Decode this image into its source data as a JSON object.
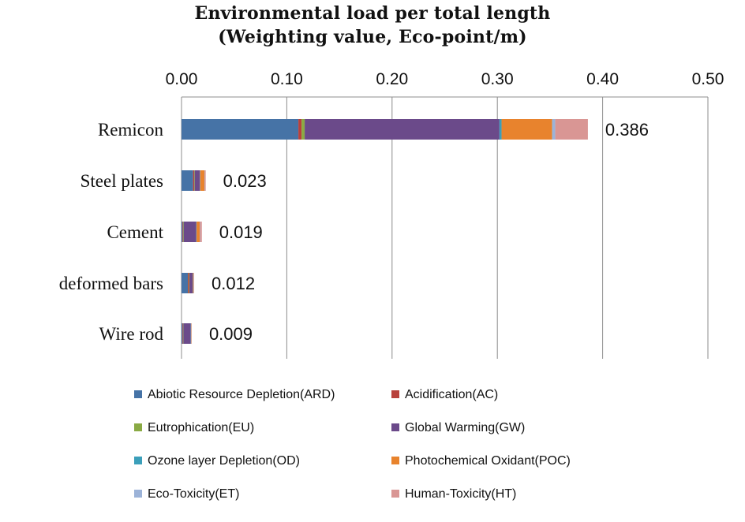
{
  "chart_data": {
    "type": "bar",
    "orientation": "horizontal",
    "stacked": true,
    "title_line1": "Environmental load per total length",
    "title_line2": "(Weighting value, Eco-point/m)",
    "xlim": [
      0,
      0.5
    ],
    "xticks": [
      "0.00",
      "0.10",
      "0.20",
      "0.30",
      "0.40",
      "0.50"
    ],
    "tick_values": [
      0,
      0.1,
      0.2,
      0.3,
      0.4,
      0.5
    ],
    "grid": true,
    "legend_position": "bottom",
    "categories": [
      "Remicon",
      "Steel plates",
      "Cement",
      "deformed bars",
      "Wire rod"
    ],
    "totals": [
      "0.386",
      "0.023",
      "0.019",
      "0.012",
      "0.009"
    ],
    "series": [
      {
        "name": "Abiotic Resource Depletion(ARD)",
        "color": "#4673a6",
        "values": [
          0.111,
          0.011,
          0.001,
          0.006,
          0.001
        ]
      },
      {
        "name": "Acidification(AC)",
        "color": "#b8413c",
        "values": [
          0.003,
          0.001,
          0.0005,
          0.001,
          0.0005
        ]
      },
      {
        "name": "Eutrophication(EU)",
        "color": "#8aaa44",
        "values": [
          0.003,
          0.0005,
          0.0005,
          0.0005,
          0.0003
        ]
      },
      {
        "name": "Global Warming(GW)",
        "color": "#6b4a8a",
        "values": [
          0.185,
          0.005,
          0.012,
          0.003,
          0.007
        ]
      },
      {
        "name": "Ozone layer Depletion(OD)",
        "color": "#3b9fba",
        "values": [
          0.002,
          0.0003,
          0.0003,
          0.0003,
          0.0002
        ]
      },
      {
        "name": "Photochemical Oxidant(POC)",
        "color": "#e8832d",
        "values": [
          0.048,
          0.004,
          0.003,
          0.0005,
          0.0003
        ]
      },
      {
        "name": "Eco-Toxicity(ET)",
        "color": "#9cb3d8",
        "values": [
          0.003,
          0.0003,
          0.0003,
          0.0002,
          0.0002
        ]
      },
      {
        "name": "Human-Toxicity(HT)",
        "color": "#d99694",
        "values": [
          0.031,
          0.0009,
          0.0017,
          0.0005,
          0.0002
        ]
      }
    ]
  }
}
